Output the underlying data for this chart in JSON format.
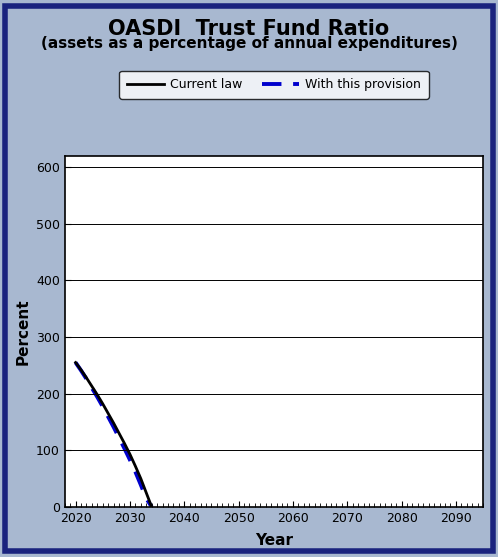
{
  "title": "OASDI  Trust Fund Ratio",
  "subtitle": "(assets as a percentage of annual expenditures)",
  "xlabel": "Year",
  "ylabel": "Percent",
  "xlim": [
    2018,
    2095
  ],
  "ylim": [
    0,
    620
  ],
  "xticks": [
    2020,
    2030,
    2040,
    2050,
    2060,
    2070,
    2080,
    2090
  ],
  "yticks": [
    0,
    100,
    200,
    300,
    400,
    500,
    600
  ],
  "bg_color": "#a8b8d0",
  "plot_bg_color": "#ffffff",
  "border_color": "#1a237e",
  "current_law_x": [
    2020,
    2021,
    2022,
    2023,
    2024,
    2025,
    2026,
    2027,
    2028,
    2029,
    2030,
    2031,
    2032,
    2033,
    2034
  ],
  "current_law_y": [
    255,
    242,
    228,
    213,
    198,
    182,
    165,
    148,
    130,
    112,
    93,
    72,
    50,
    25,
    0
  ],
  "provision_x": [
    2020,
    2021,
    2022,
    2023,
    2024,
    2025,
    2026,
    2027,
    2028,
    2029,
    2030,
    2031,
    2032,
    2033,
    2034
  ],
  "provision_y": [
    255,
    241,
    226,
    210,
    194,
    177,
    159,
    141,
    122,
    103,
    83,
    62,
    39,
    15,
    0
  ],
  "legend_labels": [
    "Current law",
    "With this provision"
  ],
  "current_law_color": "#000000",
  "provision_color": "#0000cc",
  "current_law_linewidth": 2.0,
  "provision_linewidth": 2.8,
  "title_fontsize": 15,
  "subtitle_fontsize": 11,
  "axis_label_fontsize": 11,
  "tick_fontsize": 9
}
